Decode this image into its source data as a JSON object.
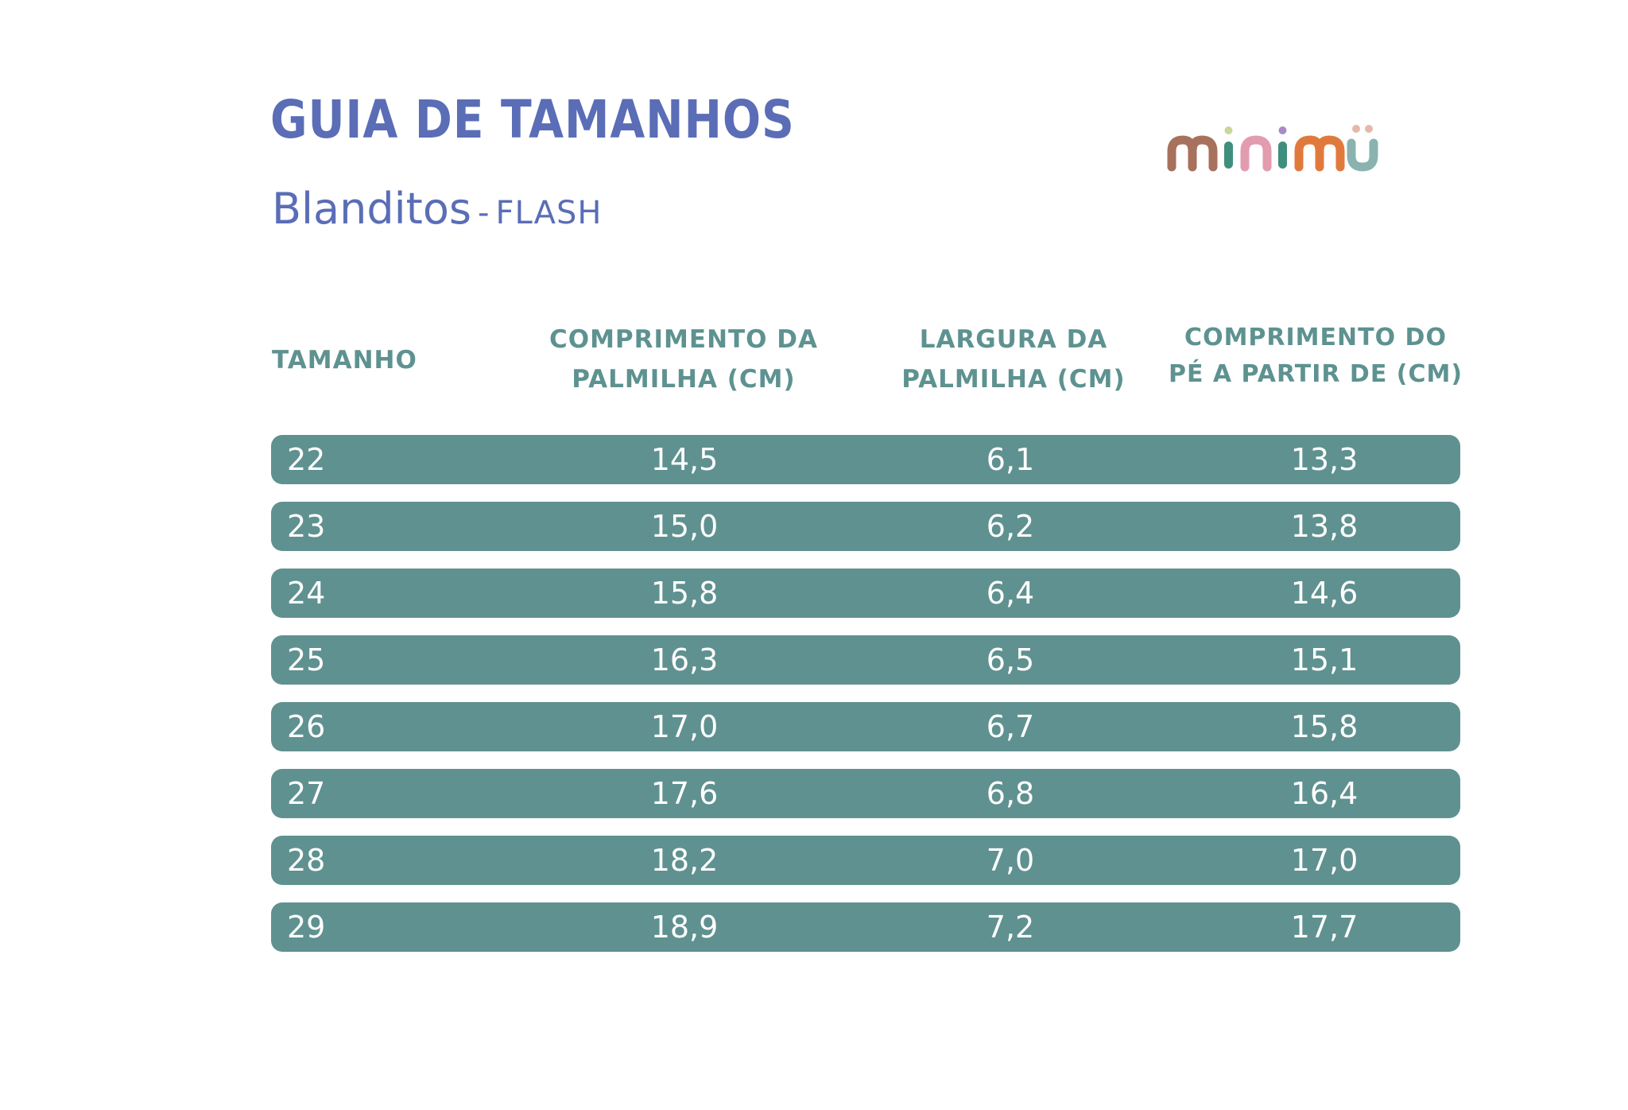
{
  "header": {
    "title": "GUIA DE TAMANHOS",
    "subtitle_name": "Blanditos",
    "subtitle_separator": "-",
    "subtitle_variant": "FLASH"
  },
  "logo": {
    "text": "minimü",
    "colors": [
      "#a7715d",
      "#3f8f7f",
      "#e39bb0",
      "#e07a3c",
      "#8ab3b0",
      "#c8d89a",
      "#a58cc7",
      "#e5b8a8"
    ]
  },
  "table": {
    "columns": [
      "TAMANHO",
      "COMPRIMENTO DA\nPALMILHA (CM)",
      "LARGURA DA\nPALMILHA (CM)",
      "COMPRIMENTO DO\nPÉ A PARTIR DE (CM)"
    ],
    "rows": [
      [
        "22",
        "14,5",
        "6,1",
        "13,3"
      ],
      [
        "23",
        "15,0",
        "6,2",
        "13,8"
      ],
      [
        "24",
        "15,8",
        "6,4",
        "14,6"
      ],
      [
        "25",
        "16,3",
        "6,5",
        "15,1"
      ],
      [
        "26",
        "17,0",
        "6,7",
        "15,8"
      ],
      [
        "27",
        "17,6",
        "6,8",
        "16,4"
      ],
      [
        "28",
        "18,2",
        "7,0",
        "17,0"
      ],
      [
        "29",
        "18,9",
        "7,2",
        "17,7"
      ]
    ],
    "row_color": "#5f9190",
    "header_color": "#5d9290",
    "title_color": "#5a6db6"
  }
}
